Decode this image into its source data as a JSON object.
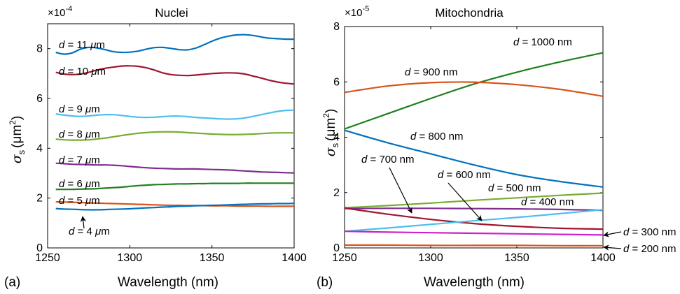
{
  "chart_data": [
    {
      "type": "line",
      "panel_label": "(a)",
      "title": "Nuclei",
      "xlabel": "Wavelength (nm)",
      "ylabel_symbol": "σ",
      "ylabel_sub": "s",
      "ylabel_unit_open": "(μm",
      "ylabel_unit_sup": "2",
      "ylabel_unit_close": ")",
      "multiplier_base": "×10",
      "multiplier_exp": "-4",
      "xlim": [
        1250,
        1400
      ],
      "ylim": [
        0,
        9
      ],
      "xticks": [
        "1250",
        "1300",
        "1350",
        "1400"
      ],
      "yticks": [
        "0",
        "2",
        "4",
        "6",
        "8"
      ],
      "x": [
        1255,
        1260,
        1265,
        1270,
        1275,
        1280,
        1285,
        1290,
        1295,
        1300,
        1305,
        1310,
        1315,
        1320,
        1325,
        1330,
        1335,
        1340,
        1345,
        1350,
        1355,
        1360,
        1365,
        1370,
        1375,
        1380,
        1385,
        1390,
        1395,
        1400
      ],
      "series": [
        {
          "label": "d = 11 μm",
          "color": "#0072BD",
          "values": [
            7.85,
            7.78,
            7.83,
            7.98,
            8.05,
            8.03,
            7.96,
            7.88,
            7.85,
            7.86,
            7.9,
            7.98,
            8.04,
            8.05,
            8.01,
            7.96,
            7.95,
            8.02,
            8.15,
            8.3,
            8.42,
            8.5,
            8.55,
            8.56,
            8.53,
            8.47,
            8.42,
            8.4,
            8.38,
            8.38
          ]
        },
        {
          "label": "d = 10 μm",
          "color": "#A2142F",
          "values": [
            7.05,
            6.98,
            6.96,
            6.98,
            7.05,
            7.14,
            7.21,
            7.26,
            7.3,
            7.31,
            7.29,
            7.23,
            7.14,
            7.03,
            6.96,
            6.93,
            6.92,
            6.94,
            6.97,
            7.0,
            7.02,
            7.03,
            7.02,
            6.98,
            6.9,
            6.82,
            6.73,
            6.66,
            6.61,
            6.58
          ]
        },
        {
          "label": "d = 9 μm",
          "color": "#4DBEEE",
          "values": [
            5.38,
            5.33,
            5.3,
            5.28,
            5.3,
            5.33,
            5.35,
            5.35,
            5.32,
            5.28,
            5.25,
            5.24,
            5.25,
            5.27,
            5.29,
            5.29,
            5.27,
            5.24,
            5.22,
            5.2,
            5.18,
            5.17,
            5.18,
            5.22,
            5.28,
            5.35,
            5.42,
            5.48,
            5.52,
            5.53
          ]
        },
        {
          "label": "d = 8 μm",
          "color": "#77AC30",
          "values": [
            4.37,
            4.34,
            4.33,
            4.33,
            4.34,
            4.37,
            4.41,
            4.46,
            4.51,
            4.56,
            4.6,
            4.63,
            4.65,
            4.66,
            4.66,
            4.65,
            4.63,
            4.61,
            4.59,
            4.57,
            4.56,
            4.55,
            4.55,
            4.56,
            4.57,
            4.59,
            4.61,
            4.62,
            4.62,
            4.62
          ]
        },
        {
          "label": "d = 7 μm",
          "color": "#7E2F8E",
          "values": [
            3.4,
            3.38,
            3.36,
            3.35,
            3.34,
            3.33,
            3.33,
            3.32,
            3.3,
            3.27,
            3.24,
            3.22,
            3.2,
            3.19,
            3.18,
            3.17,
            3.17,
            3.17,
            3.16,
            3.15,
            3.14,
            3.13,
            3.11,
            3.09,
            3.07,
            3.05,
            3.04,
            3.03,
            3.02,
            3.01
          ]
        },
        {
          "label": "d = 6 μm",
          "color": "#1F7F1F",
          "values": [
            2.35,
            2.35,
            2.35,
            2.36,
            2.37,
            2.38,
            2.4,
            2.42,
            2.44,
            2.47,
            2.5,
            2.52,
            2.54,
            2.55,
            2.56,
            2.57,
            2.57,
            2.58,
            2.58,
            2.59,
            2.59,
            2.59,
            2.59,
            2.6,
            2.6,
            2.6,
            2.6,
            2.6,
            2.6,
            2.6
          ]
        },
        {
          "label": "d = 5 μm",
          "color": "#D95319",
          "values": [
            1.85,
            1.84,
            1.83,
            1.82,
            1.81,
            1.8,
            1.79,
            1.78,
            1.77,
            1.76,
            1.75,
            1.74,
            1.73,
            1.72,
            1.71,
            1.71,
            1.7,
            1.7,
            1.7,
            1.69,
            1.69,
            1.69,
            1.68,
            1.68,
            1.68,
            1.68,
            1.67,
            1.67,
            1.67,
            1.67
          ]
        },
        {
          "label": "d = 4 μm",
          "color": "#0072BD",
          "values": [
            1.58,
            1.56,
            1.55,
            1.54,
            1.53,
            1.53,
            1.54,
            1.55,
            1.56,
            1.57,
            1.59,
            1.61,
            1.62,
            1.64,
            1.65,
            1.67,
            1.68,
            1.69,
            1.7,
            1.71,
            1.72,
            1.73,
            1.74,
            1.75,
            1.76,
            1.77,
            1.77,
            1.78,
            1.78,
            1.79
          ]
        }
      ]
    },
    {
      "type": "line",
      "panel_label": "(b)",
      "title": "Mitochondria",
      "xlabel": "Wavelength (nm)",
      "ylabel_symbol": "σ",
      "ylabel_sub": "s",
      "ylabel_unit_open": "(μm",
      "ylabel_unit_sup": "2",
      "ylabel_unit_close": ")",
      "multiplier_base": "×10",
      "multiplier_exp": "-5",
      "xlim": [
        1250,
        1400
      ],
      "ylim": [
        0,
        8
      ],
      "xticks": [
        "1250",
        "1300",
        "1350",
        "1400"
      ],
      "yticks": [
        "0",
        "2",
        "4",
        "6",
        "8"
      ],
      "x": [
        1250,
        1275,
        1300,
        1325,
        1350,
        1375,
        1400
      ],
      "series": [
        {
          "label": "d = 1000 nm",
          "color": "#1F7F1F",
          "values": [
            4.3,
            4.85,
            5.4,
            5.92,
            6.35,
            6.72,
            7.05
          ]
        },
        {
          "label": "d = 900 nm",
          "color": "#D95319",
          "values": [
            5.62,
            5.85,
            5.97,
            5.99,
            5.9,
            5.73,
            5.48
          ]
        },
        {
          "label": "d = 800 nm",
          "color": "#0072BD",
          "values": [
            4.25,
            3.8,
            3.4,
            3.0,
            2.65,
            2.4,
            2.2
          ]
        },
        {
          "label": "d = 500 nm",
          "color": "#77AC30",
          "values": [
            1.45,
            1.53,
            1.62,
            1.72,
            1.81,
            1.9,
            1.98
          ]
        },
        {
          "label": "d = 400 nm",
          "color": "#7E2F8E",
          "values": [
            1.42,
            1.43,
            1.43,
            1.42,
            1.41,
            1.39,
            1.36
          ]
        },
        {
          "label": "d = 700 nm",
          "color": "#A2142F",
          "values": [
            1.44,
            1.22,
            1.03,
            0.88,
            0.78,
            0.71,
            0.68
          ]
        },
        {
          "label": "d = 600 nm",
          "color": "#4DBEEE",
          "values": [
            0.6,
            0.72,
            0.85,
            0.98,
            1.1,
            1.24,
            1.38
          ]
        },
        {
          "label": "d = 300 nm",
          "color": "#CC22CC",
          "values": [
            0.6,
            0.57,
            0.55,
            0.53,
            0.51,
            0.49,
            0.47
          ]
        },
        {
          "label": "d = 200 nm",
          "color": "#D95319",
          "values": [
            0.1,
            0.1,
            0.09,
            0.09,
            0.09,
            0.08,
            0.08
          ]
        }
      ]
    }
  ]
}
